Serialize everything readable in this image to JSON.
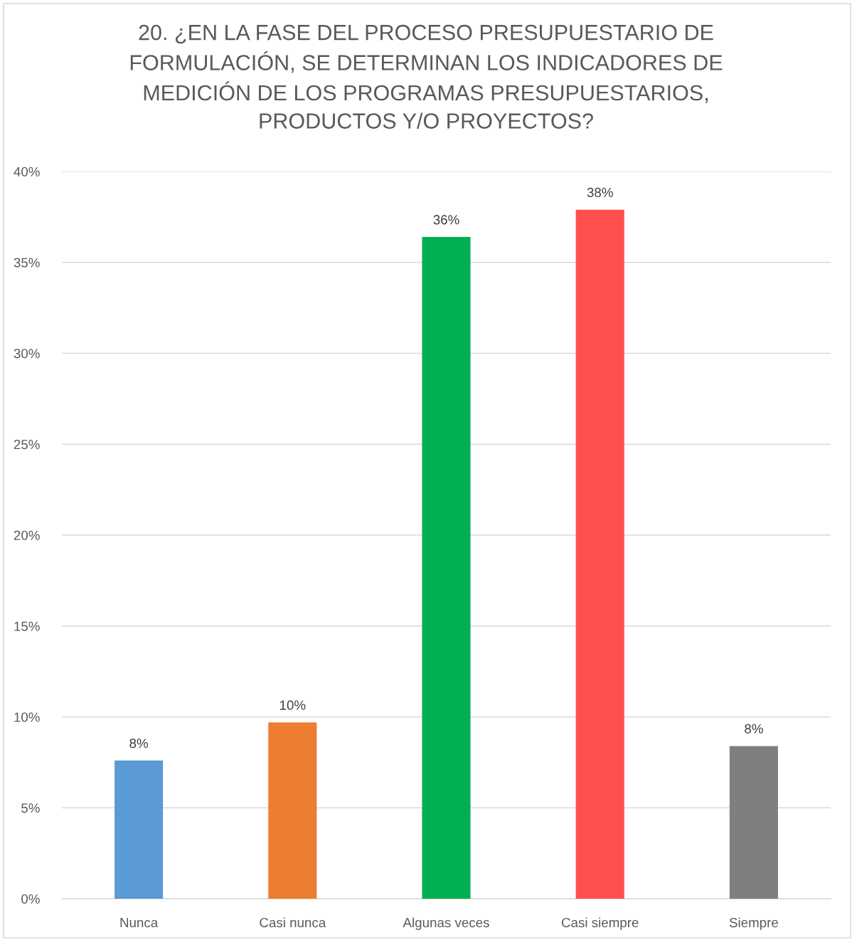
{
  "chart_data": {
    "type": "bar",
    "title": "20. ¿EN LA FASE DEL PROCESO PRESUPUESTARIO DE\nFORMULACIÓN, SE DETERMINAN LOS INDICADORES DE\nMEDICIÓN DE LOS PROGRAMAS PRESUPUESTARIOS,\nPRODUCTOS Y/O PROYECTOS?",
    "categories": [
      "Nunca",
      "Casi nunca",
      "Algunas veces",
      "Casi siempre",
      "Siempre"
    ],
    "values": [
      7.6,
      9.7,
      36.4,
      37.9,
      8.4
    ],
    "colors": [
      "#5b9bd5",
      "#ed7d31",
      "#00b050",
      "#ff5050",
      "#7f7f7f"
    ],
    "value_labels": [
      "8%",
      "10%",
      "36%",
      "38%",
      "8%"
    ],
    "ylim": [
      0,
      40
    ],
    "yticks": [
      {
        "value": 0,
        "label": "0%"
      },
      {
        "value": 5,
        "label": "5%"
      },
      {
        "value": 10,
        "label": "10%"
      },
      {
        "value": 15,
        "label": "15%"
      },
      {
        "value": 20,
        "label": "20%"
      },
      {
        "value": 25,
        "label": "25%"
      },
      {
        "value": 30,
        "label": "30%"
      },
      {
        "value": 35,
        "label": "35%"
      },
      {
        "value": 40,
        "label": "40%"
      }
    ],
    "grid": "y"
  }
}
